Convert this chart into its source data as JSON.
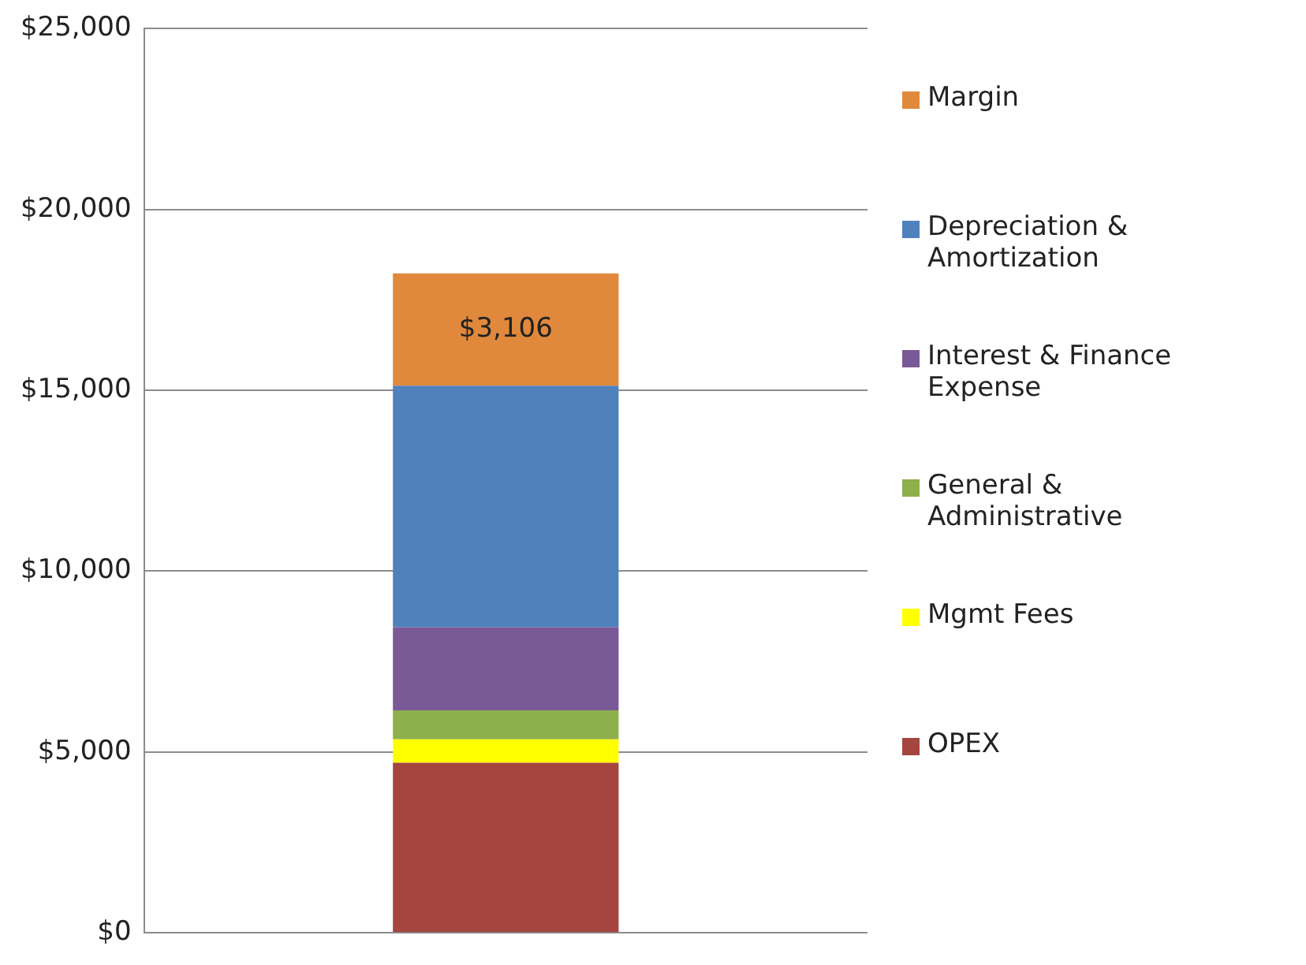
{
  "chart_data": {
    "type": "bar",
    "stacked": true,
    "categories": [
      null
    ],
    "series": [
      {
        "name": "OPEX",
        "color": "#a5453f",
        "values": [
          4700
        ]
      },
      {
        "name": "Mgmt Fees",
        "color": "#ffff00",
        "values": [
          650
        ]
      },
      {
        "name": "General & Administrative",
        "color": "#8db04c",
        "values": [
          800
        ]
      },
      {
        "name": "Interest & Finance Expense",
        "color": "#7a5a96",
        "values": [
          2300
        ]
      },
      {
        "name": "Depreciation & Amortization",
        "color": "#4f81bd",
        "values": [
          6680
        ]
      },
      {
        "name": "Margin",
        "color": "#e0893c",
        "values": [
          3106
        ],
        "value_labels": [
          "$3,106"
        ]
      }
    ],
    "ylim": [
      0,
      25000
    ],
    "yticks": [
      {
        "value": 0,
        "label": "$0"
      },
      {
        "value": 5000,
        "label": "$5,000"
      },
      {
        "value": 10000,
        "label": "$10,000"
      },
      {
        "value": 15000,
        "label": "$15,000"
      },
      {
        "value": 20000,
        "label": "$20,000"
      },
      {
        "value": 25000,
        "label": "$25,000"
      }
    ],
    "grid": "y",
    "legend": "right"
  }
}
